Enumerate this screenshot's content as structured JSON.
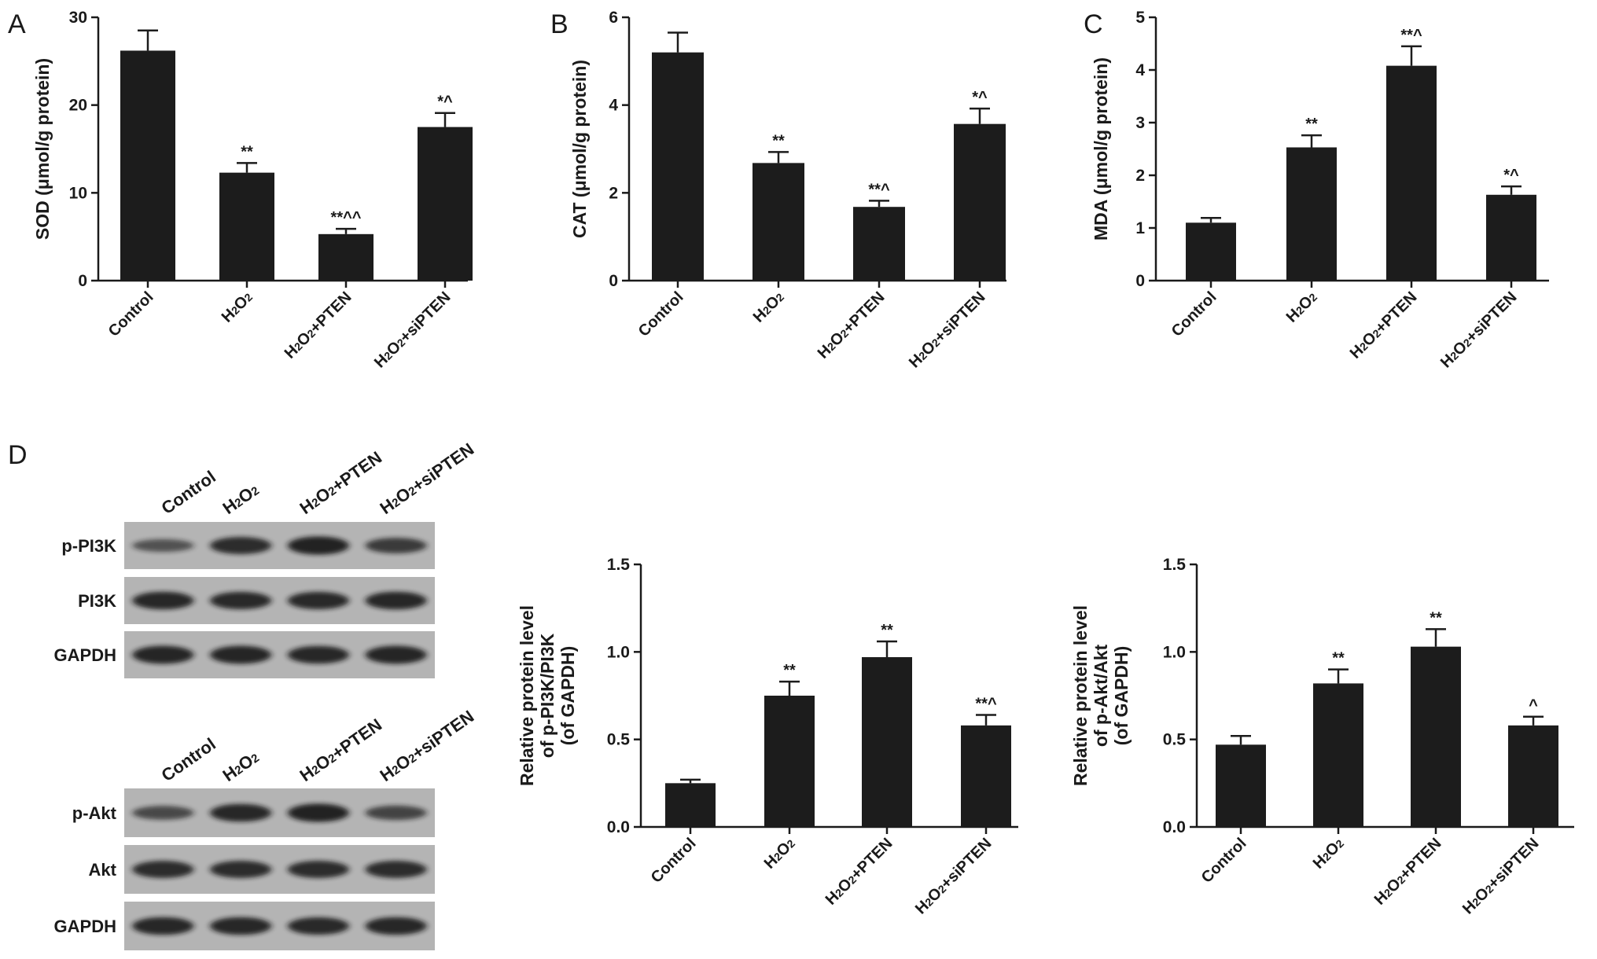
{
  "panels": [
    "A",
    "B",
    "C",
    "D"
  ],
  "chart_data": [
    {
      "type": "bar",
      "panel": "A",
      "categories": [
        "Control",
        "H2O2",
        "H2O2+PTEN",
        "H2O2+siPTEN"
      ],
      "values": [
        26.2,
        12.3,
        5.3,
        17.5
      ],
      "errors": [
        2.3,
        1.1,
        0.6,
        1.6
      ],
      "annotations": [
        "",
        "**",
        "**^^",
        "*^"
      ],
      "ylabel": "SOD (μmol/g protein)",
      "ylim": [
        0,
        30
      ],
      "yticks": [
        "0",
        "10",
        "20",
        "30"
      ],
      "grid": false
    },
    {
      "type": "bar",
      "panel": "B",
      "categories": [
        "Control",
        "H2O2",
        "H2O2+PTEN",
        "H2O2+siPTEN"
      ],
      "values": [
        5.2,
        2.68,
        1.68,
        3.57
      ],
      "errors": [
        0.45,
        0.25,
        0.14,
        0.35
      ],
      "annotations": [
        "",
        "**",
        "**^",
        "*^"
      ],
      "ylabel": "CAT (μmol/g protein)",
      "ylim": [
        0,
        6
      ],
      "yticks": [
        "0",
        "2",
        "4",
        "6"
      ],
      "grid": false
    },
    {
      "type": "bar",
      "panel": "C",
      "categories": [
        "Control",
        "H2O2",
        "H2O2+PTEN",
        "H2O2+siPTEN"
      ],
      "values": [
        1.1,
        2.53,
        4.08,
        1.63
      ],
      "errors": [
        0.09,
        0.23,
        0.37,
        0.16
      ],
      "annotations": [
        "",
        "**",
        "**^",
        "*^"
      ],
      "ylabel": "MDA (μmol/g protein)",
      "ylim": [
        0,
        5
      ],
      "yticks": [
        "0",
        "1",
        "2",
        "3",
        "4",
        "5"
      ],
      "grid": false
    },
    {
      "type": "bar",
      "panel": "D",
      "categories": [
        "Control",
        "H2O2",
        "H2O2+PTEN",
        "H2O2+siPTEN"
      ],
      "values": [
        0.25,
        0.75,
        0.97,
        0.58
      ],
      "errors": [
        0.02,
        0.08,
        0.09,
        0.06
      ],
      "annotations": [
        "",
        "**",
        "**",
        "**^"
      ],
      "ylabel": [
        "Relative protein level",
        "of p-PI3K/PI3K",
        "(of GAPDH)"
      ],
      "ylim": [
        0,
        1.5
      ],
      "yticks": [
        "0.0",
        "0.5",
        "1.0",
        "1.5"
      ],
      "grid": false
    },
    {
      "type": "bar",
      "panel": "D",
      "categories": [
        "Control",
        "H2O2",
        "H2O2+PTEN",
        "H2O2+siPTEN"
      ],
      "values": [
        0.47,
        0.82,
        1.03,
        0.58
      ],
      "errors": [
        0.05,
        0.08,
        0.1,
        0.05
      ],
      "annotations": [
        "",
        "**",
        "**",
        "^"
      ],
      "ylabel": [
        "Relative protein level",
        "of p-Akt/Akt",
        "(of GAPDH)"
      ],
      "ylim": [
        0,
        1.5
      ],
      "yticks": [
        "0.0",
        "0.5",
        "1.0",
        "1.5"
      ],
      "grid": false
    }
  ],
  "blots": [
    {
      "lanes": [
        "Control",
        "H2O2",
        "H2O2+PTEN",
        "H2O2+siPTEN"
      ],
      "rows": [
        {
          "label": "p-PI3K",
          "intensity": [
            0.45,
            0.85,
            0.95,
            0.7
          ]
        },
        {
          "label": "PI3K",
          "intensity": [
            0.9,
            0.88,
            0.88,
            0.9
          ]
        },
        {
          "label": "GAPDH",
          "intensity": [
            0.92,
            0.92,
            0.9,
            0.92
          ]
        }
      ]
    },
    {
      "lanes": [
        "Control",
        "H2O2",
        "H2O2+PTEN",
        "H2O2+siPTEN"
      ],
      "rows": [
        {
          "label": "p-Akt",
          "intensity": [
            0.55,
            0.9,
            0.95,
            0.6
          ]
        },
        {
          "label": "Akt",
          "intensity": [
            0.85,
            0.85,
            0.85,
            0.85
          ]
        },
        {
          "label": "GAPDH",
          "intensity": [
            0.9,
            0.9,
            0.88,
            0.9
          ]
        }
      ]
    }
  ],
  "colors": {
    "bar": "#1c1c1c",
    "axis": "#1a1a1a",
    "blot_bg": "#b4b4b4",
    "band": "#141414"
  }
}
